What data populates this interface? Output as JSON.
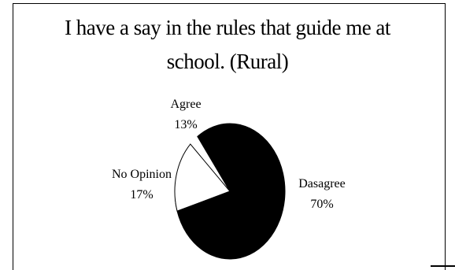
{
  "chart_data": {
    "type": "pie",
    "title": [
      "I have a say in the rules that guide me at",
      "school. (Rural)"
    ],
    "slices": [
      {
        "label": "Agree",
        "value": 13,
        "value_label": "13%",
        "color": "#000000"
      },
      {
        "label": "Dasagree",
        "value": 70,
        "value_label": "70%",
        "color": "#000000"
      },
      {
        "label": "No Opinion",
        "value": 17,
        "value_label": "17%",
        "color": "#ffffff"
      }
    ]
  }
}
